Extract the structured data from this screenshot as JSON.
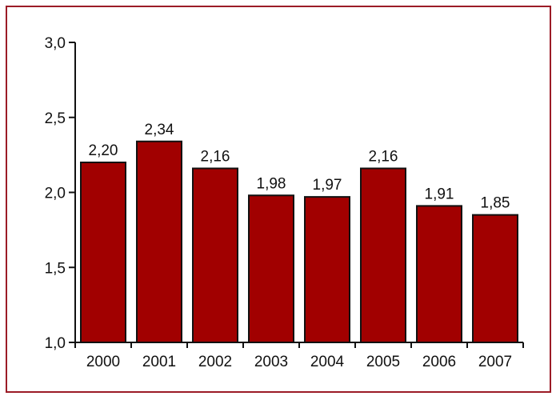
{
  "chart_data": {
    "type": "bar",
    "categories": [
      "2000",
      "2001",
      "2002",
      "2003",
      "2004",
      "2005",
      "2006",
      "2007"
    ],
    "values": [
      2.2,
      2.34,
      2.16,
      1.98,
      1.97,
      2.16,
      1.91,
      1.85
    ],
    "value_labels": [
      "2,20",
      "2,34",
      "2,16",
      "1,98",
      "1,97",
      "2,16",
      "1,91",
      "1,85"
    ],
    "ylim": [
      1.0,
      3.0
    ],
    "yticks": [
      1.0,
      1.5,
      2.0,
      2.5,
      3.0
    ],
    "ytick_labels": [
      "1,0",
      "1,5",
      "2,0",
      "2,5",
      "3,0"
    ],
    "title": "",
    "xlabel": "",
    "ylabel": "",
    "grid": false,
    "legend": "none",
    "bar_color": "#a10000",
    "frame_color": "#9b1b26"
  }
}
